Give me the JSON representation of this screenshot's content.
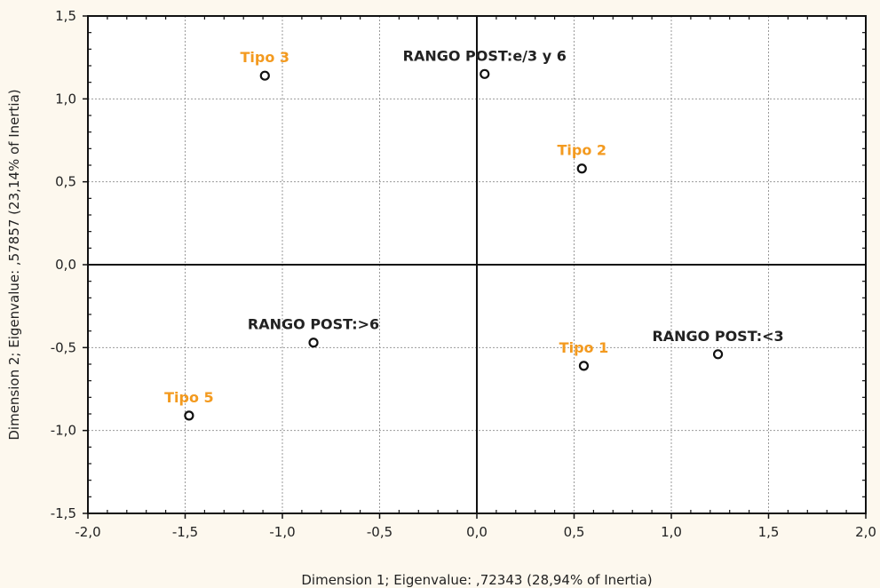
{
  "colors": {
    "background": "#fdf8ee",
    "plot_background": "#ffffff",
    "row_category": "#f39a1f",
    "column_category": "#222222",
    "grid": "#9a9a9a"
  },
  "chart_data": {
    "type": "scatter",
    "title": "",
    "xlabel": "Dimension 1; Eigenvalue: ,72343 (28,94% of Inertia)",
    "ylabel": "Dimension 2; Eigenvalue: ,57857 (23,14% of Inertia)",
    "xlim": [
      -2.0,
      2.0
    ],
    "ylim": [
      -1.5,
      1.5
    ],
    "x_ticks": [
      -2.0,
      -1.5,
      -1.0,
      -0.5,
      0.0,
      0.5,
      1.0,
      1.5,
      2.0
    ],
    "x_tick_labels": [
      "-2,0",
      "-1,5",
      "-1,0",
      "-0,5",
      "0,0",
      "0,5",
      "1,0",
      "1,5",
      "2,0"
    ],
    "y_ticks": [
      -1.5,
      -1.0,
      -0.5,
      0.0,
      0.5,
      1.0,
      1.5
    ],
    "y_tick_labels": [
      "-1,5",
      "-1,0",
      "-0,5",
      "0,0",
      "0,5",
      "1,0",
      "1,5"
    ],
    "grid": true,
    "reference_lines": {
      "x": 0,
      "y": 0
    },
    "series": [
      {
        "color": "#f39a1f",
        "points": [
          {
            "label": "Tipo 3",
            "x": -1.09,
            "y": 1.14
          },
          {
            "label": "Tipo 2",
            "x": 0.54,
            "y": 0.58
          },
          {
            "label": "Tipo 1",
            "x": 0.55,
            "y": -0.61
          },
          {
            "label": "Tipo 5",
            "x": -1.48,
            "y": -0.91
          }
        ]
      },
      {
        "color": "#222222",
        "points": [
          {
            "label": "RANGO POST:e/3 y 6",
            "x": 0.04,
            "y": 1.15
          },
          {
            "label": "RANGO POST:>6",
            "x": -0.84,
            "y": -0.47
          },
          {
            "label": "RANGO POST:<3",
            "x": 1.24,
            "y": -0.54
          }
        ]
      }
    ]
  }
}
